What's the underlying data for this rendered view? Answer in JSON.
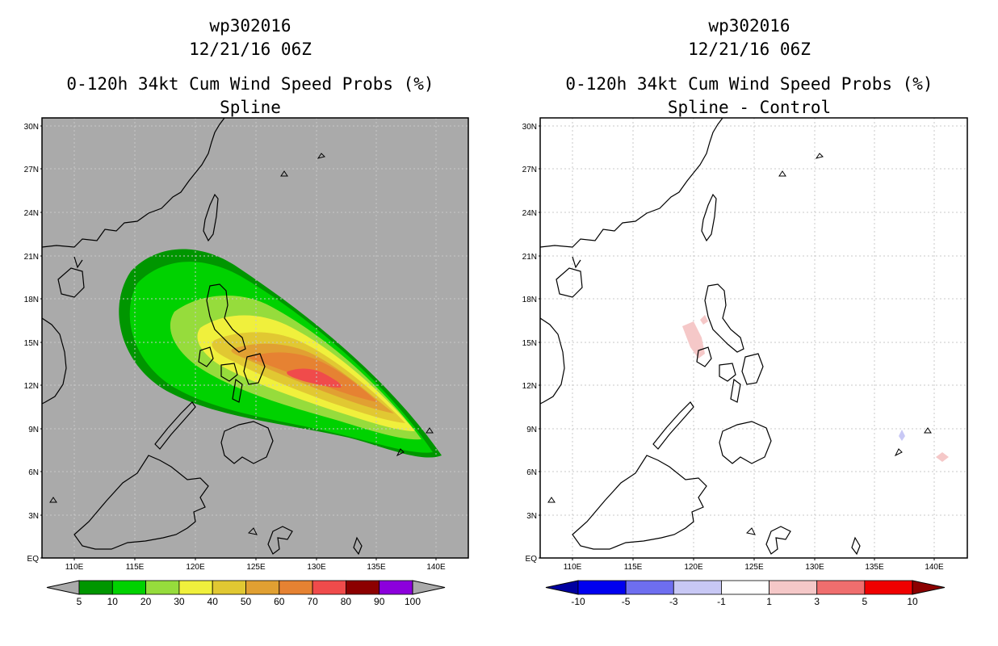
{
  "left_panel": {
    "line1": "wp302016",
    "line2": "12/21/16 06Z",
    "line3": "0-120h 34kt Cum Wind Speed Probs (%)",
    "line4": "Spline",
    "background_color": "#aaaaaa"
  },
  "right_panel": {
    "line1": "wp302016",
    "line2": "12/21/16 06Z",
    "line3": "0-120h 34kt Cum Wind Speed Probs (%)",
    "line4": "Spline - Control",
    "background_color": "#ffffff"
  },
  "lat_labels": [
    "EQ",
    "3N",
    "6N",
    "9N",
    "12N",
    "15N",
    "18N",
    "21N",
    "24N",
    "27N",
    "30N"
  ],
  "lon_labels": [
    "110E",
    "115E",
    "120E",
    "125E",
    "130E",
    "135E",
    "140E"
  ],
  "left_colorbar": {
    "colors": [
      "#009600",
      "#00d200",
      "#96dc3c",
      "#f0f03c",
      "#e1c832",
      "#e1a032",
      "#e68232",
      "#f04b4b",
      "#8c0000",
      "#8c00dc"
    ],
    "labels": [
      "5",
      "10",
      "20",
      "30",
      "40",
      "50",
      "60",
      "70",
      "80",
      "90",
      "100"
    ]
  },
  "right_colorbar": {
    "colors": [
      "#0000a0",
      "#0000f0",
      "#6e6ef0",
      "#c8c8f5",
      "#ffffff",
      "#f5c8c8",
      "#f06e6e",
      "#f00000",
      "#8c0000"
    ],
    "labels": [
      "-10",
      "-5",
      "-3",
      "-1",
      "1",
      "3",
      "5",
      "10"
    ]
  }
}
